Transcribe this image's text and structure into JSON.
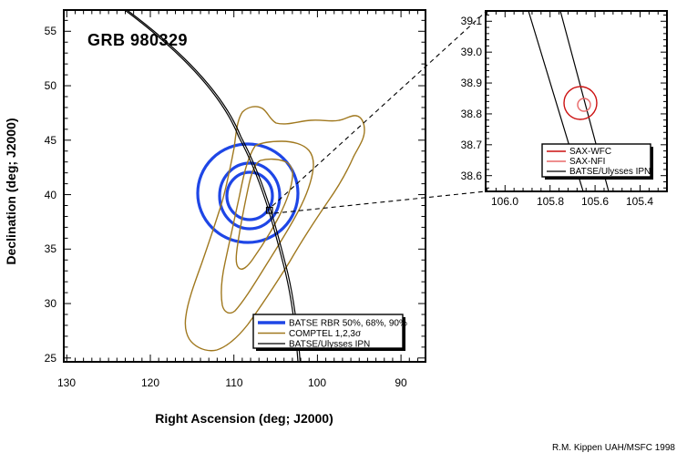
{
  "title": "GRB 980329",
  "credit": "R.M. Kippen UAH/MSFC 1998",
  "colors": {
    "batse_blue": "#1e46e6",
    "comptel_olive": "#a0781e",
    "ipn_black": "#000000",
    "sax_wfc_red": "#cc1111",
    "sax_nfi_red": "#e86a6a"
  },
  "main_plot": {
    "xlabel": "Right Ascension (deg; J2000)",
    "ylabel": "Declination (deg; J2000)",
    "x_tick_labels": [
      "130",
      "120",
      "110",
      "100",
      "90"
    ],
    "y_tick_labels": [
      "55",
      "50",
      "45",
      "40",
      "35",
      "30",
      "25"
    ],
    "legend": [
      {
        "label": "BATSE RBR 50%, 68%, 90%",
        "color": "#1e46e6"
      },
      {
        "label": "COMPTEL 1,2,3σ",
        "color": "#a0781e"
      },
      {
        "label": "BATSE/Ulysses IPN",
        "color": "#000000"
      }
    ]
  },
  "inset_plot": {
    "x_tick_labels": [
      "106.0",
      "105.8",
      "105.6",
      "105.4"
    ],
    "y_tick_labels": [
      "39.1",
      "39.0",
      "38.9",
      "38.8",
      "38.7",
      "38.6"
    ],
    "legend": [
      {
        "label": "SAX-WFC",
        "color": "#cc1111"
      },
      {
        "label": "SAX-NFI",
        "color": "#e86a6a"
      },
      {
        "label": "BATSE/Ulysses IPN",
        "color": "#000000"
      }
    ]
  },
  "chart_data": {
    "type": "line",
    "subtype": "sky-localization-contour-map",
    "title": "GRB 980329",
    "xlabel": "Right Ascension (deg; J2000)",
    "ylabel": "Declination (deg; J2000)",
    "x_axis_reversed": true,
    "grid": false,
    "main": {
      "xlim": [
        130.4,
        87.1
      ],
      "ylim": [
        24.6,
        56.9
      ],
      "x_ticks": [
        130,
        120,
        110,
        100,
        90
      ],
      "y_ticks": [
        55,
        50,
        45,
        40,
        35,
        30,
        25
      ],
      "legend_position": "lower-center-right",
      "series": [
        {
          "name": "BATSE RBR 50%, 68%, 90%",
          "style": "thick blue statistical-confidence circles",
          "center": {
            "ra": 108.4,
            "dec": 40.0
          },
          "radii_deg": [
            2.1,
            2.9,
            4.6
          ]
        },
        {
          "name": "COMPTEL 1,2,3σ",
          "style": "olive nested irregular contours elongated NE-SW",
          "ra_extent": [
            111.5,
            94.5
          ],
          "dec_extent": [
            25.5,
            48.0
          ],
          "sigma1_center": {
            "ra": 108.5,
            "dec": 37.2
          },
          "bottom_tip": {
            "ra": 113.5,
            "dec": 25.5
          },
          "top_right_tip": {
            "ra": 94.6,
            "dec": 46.3
          }
        },
        {
          "name": "BATSE/Ulysses IPN",
          "style": "black annulus arc (two close parallel curves)",
          "arc_points": [
            {
              "ra": 123.0,
              "dec": 56.9
            },
            {
              "ra": 111.6,
              "dec": 47.7
            },
            {
              "ra": 105.7,
              "dec": 38.6
            },
            {
              "ra": 102.2,
              "dec": 24.6
            }
          ]
        }
      ],
      "marker": {
        "shape": "open-square",
        "ra": 105.7,
        "dec": 38.6
      }
    },
    "inset": {
      "xlim": [
        106.09,
        105.28
      ],
      "ylim": [
        38.54,
        39.13
      ],
      "x_ticks": [
        106.0,
        105.8,
        105.6,
        105.4
      ],
      "y_ticks": [
        39.1,
        39.0,
        38.9,
        38.8,
        38.7,
        38.6
      ],
      "series": [
        {
          "name": "SAX-WFC",
          "style": "red circle",
          "center": {
            "ra": 105.67,
            "dec": 38.84
          },
          "radius_deg": 0.055
        },
        {
          "name": "SAX-NFI",
          "style": "light red circle",
          "center": {
            "ra": 105.65,
            "dec": 38.83
          },
          "radius_deg": 0.021
        },
        {
          "name": "BATSE/Ulysses IPN",
          "style": "two black straight lines",
          "lines": [
            [
              {
                "ra": 105.9,
                "dec": 39.13
              },
              {
                "ra": 105.65,
                "dec": 38.54
              }
            ],
            [
              {
                "ra": 105.75,
                "dec": 39.13
              },
              {
                "ra": 105.54,
                "dec": 38.54
              }
            ]
          ]
        }
      ]
    }
  }
}
